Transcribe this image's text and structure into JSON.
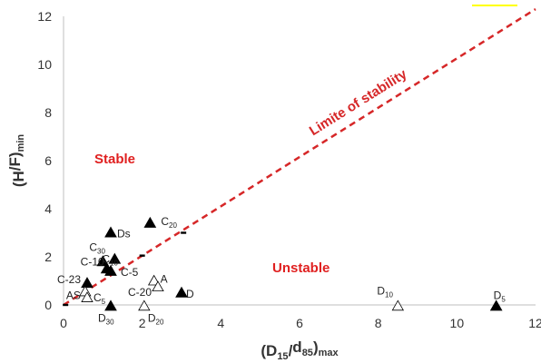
{
  "chart_data": {
    "type": "scatter",
    "title": "",
    "xlabel": "(D15/d85)max",
    "ylabel": "(H/F)min",
    "xlim": [
      0,
      12
    ],
    "ylim": [
      0,
      12
    ],
    "x_ticks": [
      "0",
      "2",
      "4",
      "6",
      "8",
      "10",
      "12"
    ],
    "y_ticks": [
      "0",
      "2",
      "4",
      "6",
      "8",
      "10",
      "12"
    ],
    "grid": false,
    "colors": {
      "dashed_line": "#d62728",
      "region_text": "#e02020",
      "markers": "#000000"
    },
    "stability_line": {
      "label": "Limite of stability",
      "style": "dashed",
      "points": [
        [
          0,
          0
        ],
        [
          12,
          12.3
        ]
      ]
    },
    "regions": [
      {
        "label": "Stable"
      },
      {
        "label": "Unstable"
      }
    ],
    "points": [
      {
        "label": "Ds",
        "x": 1.2,
        "y": 3.0,
        "filled": true
      },
      {
        "label": "C20",
        "x": 2.2,
        "y": 3.4,
        "filled": true
      },
      {
        "label": "C30",
        "x": 1.0,
        "y": 1.8,
        "filled": true
      },
      {
        "label": "C10",
        "x": 1.3,
        "y": 1.9,
        "filled": true
      },
      {
        "label": "C-5",
        "x": 1.2,
        "y": 1.4,
        "filled": true
      },
      {
        "label": "C-10",
        "x": 1.1,
        "y": 1.5,
        "filled": true
      },
      {
        "label": "C-23",
        "x": 0.6,
        "y": 0.9,
        "filled": true
      },
      {
        "label": "AS",
        "x": 0.55,
        "y": 0.55,
        "filled": false
      },
      {
        "label": "C5",
        "x": 0.6,
        "y": 0.3,
        "filled": false
      },
      {
        "label": "A",
        "x": 2.3,
        "y": 1.0,
        "filled": false
      },
      {
        "label": "C-20",
        "x": 2.4,
        "y": 0.75,
        "filled": false
      },
      {
        "label": "D",
        "x": 3.0,
        "y": 0.5,
        "filled": true
      },
      {
        "label": "D30",
        "x": 1.2,
        "y": -0.05,
        "filled": true
      },
      {
        "label": "D20",
        "x": 2.05,
        "y": -0.05,
        "filled": false
      },
      {
        "label": "D10",
        "x": 8.5,
        "y": -0.05,
        "filled": false
      },
      {
        "label": "D5",
        "x": 11.0,
        "y": -0.05,
        "filled": true
      },
      {
        "label": "",
        "x": 0.05,
        "y": 0.0,
        "filled": true
      },
      {
        "label": "",
        "x": 2.0,
        "y": 2.05,
        "filled": true
      },
      {
        "label": "",
        "x": 3.05,
        "y": 3.0,
        "filled": true
      }
    ]
  }
}
